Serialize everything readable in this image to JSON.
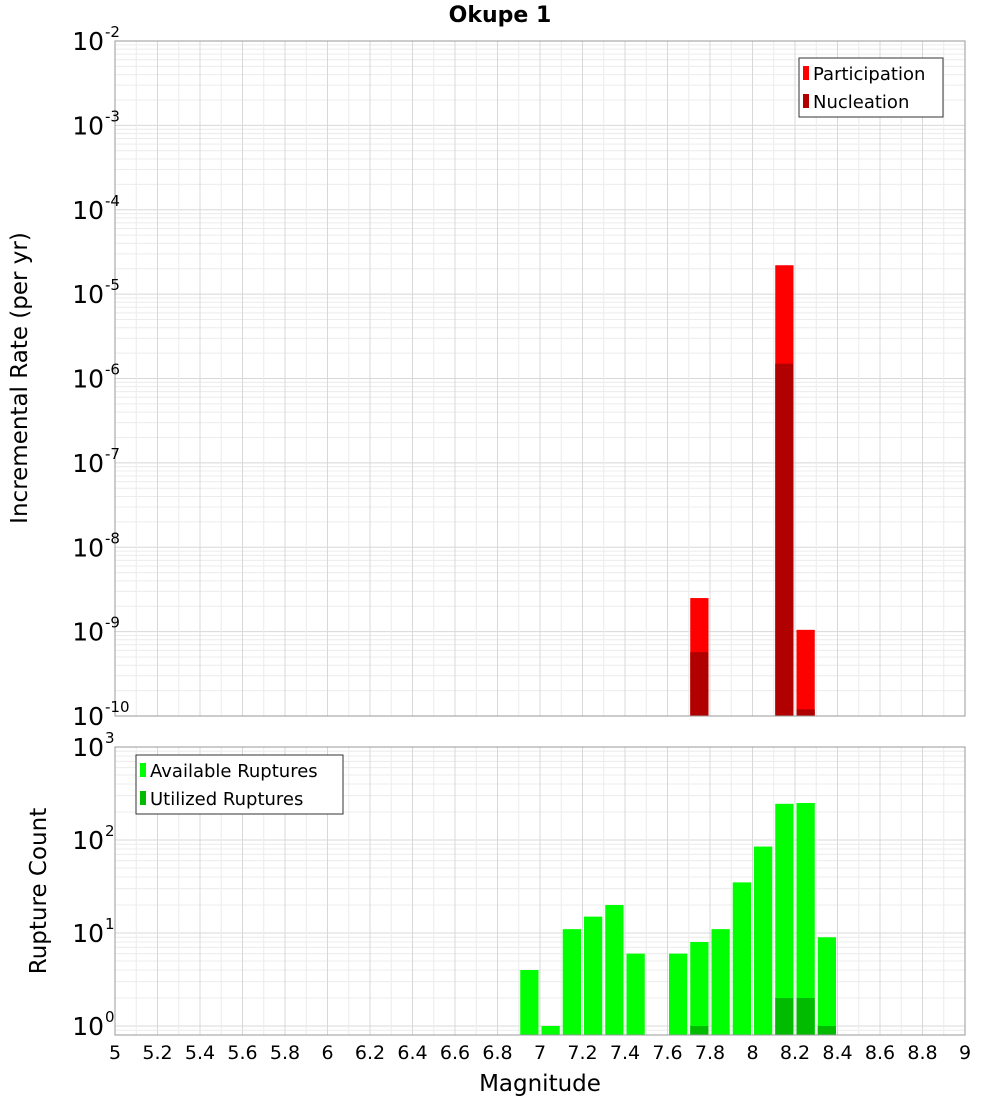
{
  "title": "Okupe 1",
  "chart_data": [
    {
      "type": "bar",
      "ylabel": "Incremental Rate (per yr)",
      "yscale": "log",
      "ylim": [
        1e-10,
        0.01
      ],
      "xlim": [
        5,
        9
      ],
      "bar_width": 0.1,
      "x": [
        7.75,
        8.15,
        8.25
      ],
      "series": [
        {
          "name": "Participation",
          "color": "#ff0000",
          "values": [
            2.5e-09,
            2.2e-05,
            1.05e-09
          ]
        },
        {
          "name": "Nucleation",
          "color": "#b00000",
          "values": [
            5.7e-10,
            1.5e-06,
            1.2e-10
          ]
        }
      ],
      "legend": "top-right",
      "grid": true
    },
    {
      "type": "bar",
      "xlabel": "Magnitude",
      "ylabel": "Rupture Count",
      "yscale": "log",
      "ylim": [
        0.8,
        1000
      ],
      "xlim": [
        5,
        9
      ],
      "bar_width": 0.1,
      "x": [
        6.95,
        7.05,
        7.15,
        7.25,
        7.35,
        7.45,
        7.65,
        7.75,
        7.85,
        7.95,
        8.05,
        8.15,
        8.25,
        8.35
      ],
      "series": [
        {
          "name": "Available Ruptures",
          "color": "#00ff00",
          "values": [
            4,
            1,
            11,
            15,
            20,
            6,
            6,
            8,
            11,
            35,
            85,
            245,
            250,
            9
          ]
        },
        {
          "name": "Utilized Ruptures",
          "color": "#00bb00",
          "values": [
            0,
            0,
            0,
            0,
            0,
            0,
            0,
            1,
            0,
            0,
            0,
            2,
            2,
            1
          ]
        }
      ],
      "xticks": [
        "5",
        "5.2",
        "5.4",
        "5.6",
        "5.8",
        "6",
        "6.2",
        "6.4",
        "6.6",
        "6.8",
        "7",
        "7.2",
        "7.4",
        "7.6",
        "7.8",
        "8",
        "8.2",
        "8.4",
        "8.6",
        "8.8",
        "9"
      ],
      "legend": "top-left",
      "grid": true
    }
  ],
  "top_yticks": [
    {
      "base": "10",
      "exp": "-2"
    },
    {
      "base": "10",
      "exp": "-3"
    },
    {
      "base": "10",
      "exp": "-4"
    },
    {
      "base": "10",
      "exp": "-5"
    },
    {
      "base": "10",
      "exp": "-6"
    },
    {
      "base": "10",
      "exp": "-7"
    },
    {
      "base": "10",
      "exp": "-8"
    },
    {
      "base": "10",
      "exp": "-9"
    },
    {
      "base": "10",
      "exp": "-10"
    }
  ],
  "bottom_yticks": [
    {
      "base": "10",
      "exp": "3"
    },
    {
      "base": "10",
      "exp": "2"
    },
    {
      "base": "10",
      "exp": "1"
    },
    {
      "base": "10",
      "exp": "0"
    }
  ]
}
